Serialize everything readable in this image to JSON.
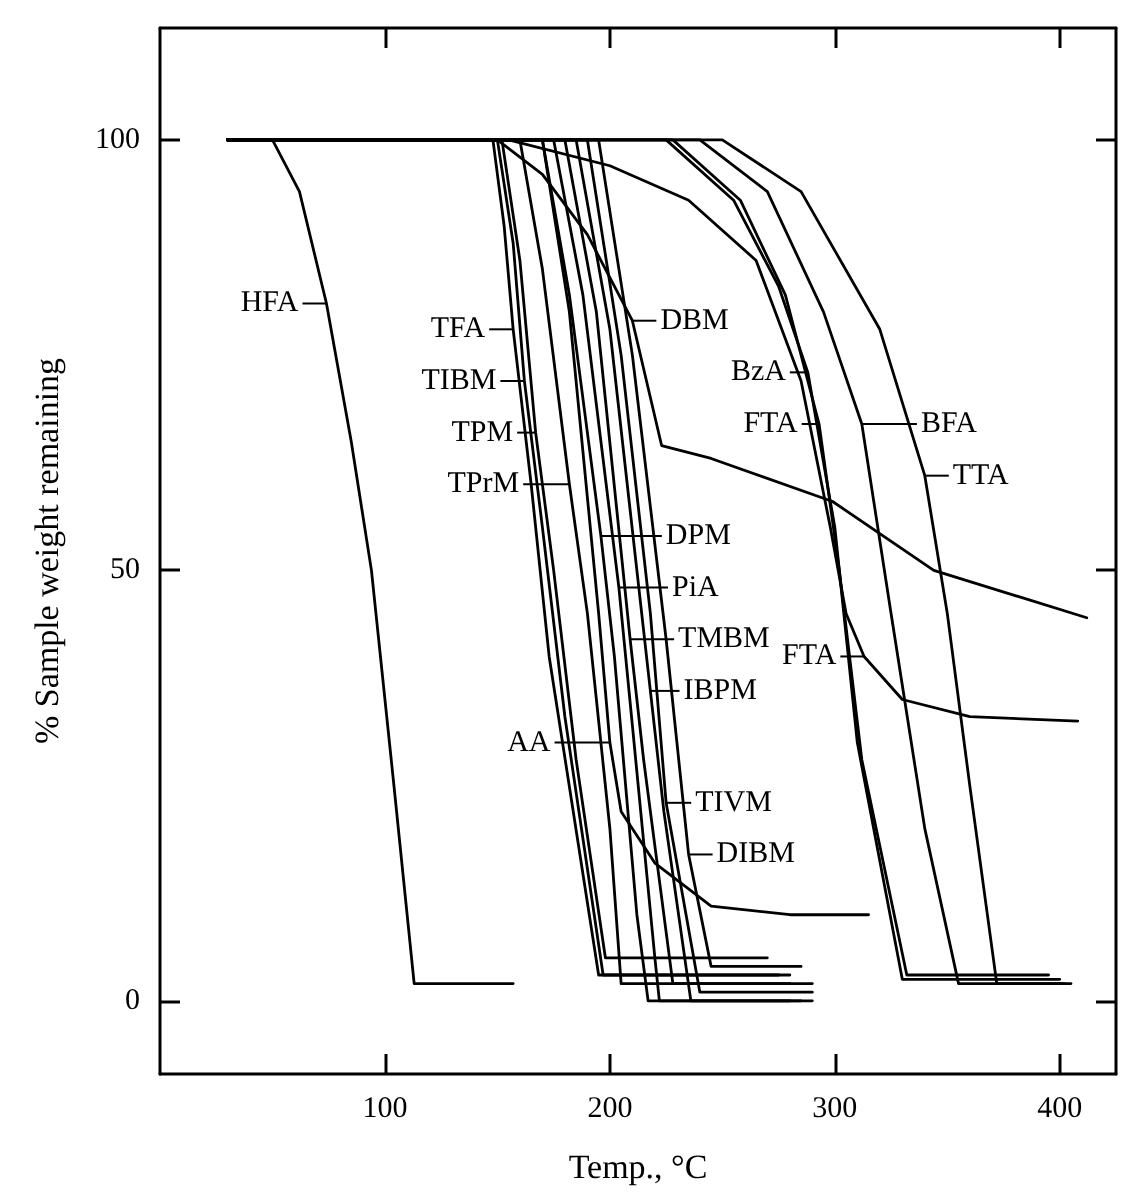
{
  "chart_data": {
    "type": "line",
    "xlabel": "Temp., °C",
    "ylabel": "% Sample weight remaining",
    "xlim": [
      0,
      425
    ],
    "xticks": [
      100,
      200,
      300,
      400
    ],
    "ylim": [
      -8.5,
      113
    ],
    "yticks": [
      0,
      50,
      100
    ],
    "grid": false,
    "marker": "none",
    "line_style": "solid",
    "series": [
      {
        "color": "#000000",
        "x": [
          30,
          50,
          62,
          74,
          85,
          94,
          104,
          113,
          157
        ],
        "values": [
          100,
          100,
          94,
          81,
          65,
          50,
          25,
          2,
          2
        ]
      },
      {
        "color": "#000000",
        "x": [
          30,
          148,
          153,
          157,
          165,
          173,
          195,
          280
        ],
        "values": [
          100,
          100,
          90,
          78,
          60,
          40,
          3,
          3
        ]
      },
      {
        "color": "#000000",
        "x": [
          30,
          150,
          157,
          162,
          170,
          180,
          197,
          275
        ],
        "values": [
          100,
          100,
          88,
          72,
          55,
          33,
          3,
          3
        ]
      },
      {
        "color": "#000000",
        "x": [
          30,
          152,
          160,
          167,
          175,
          185,
          198,
          270
        ],
        "values": [
          100,
          100,
          86,
          66,
          50,
          28,
          5,
          5
        ]
      },
      {
        "color": "#000000",
        "x": [
          30,
          160,
          170,
          182,
          190,
          200,
          205,
          280
        ],
        "values": [
          100,
          100,
          85,
          60,
          45,
          20,
          2,
          2
        ]
      },
      {
        "color": "#000000",
        "x": [
          30,
          170,
          182,
          196,
          202,
          212,
          217,
          280
        ],
        "values": [
          100,
          100,
          82,
          54,
          40,
          10,
          0,
          0
        ]
      },
      {
        "color": "#000000",
        "x": [
          30,
          175,
          188,
          204,
          210,
          220,
          222,
          285
        ],
        "values": [
          100,
          100,
          82,
          48,
          32,
          5,
          0,
          0
        ]
      },
      {
        "color": "#000000",
        "x": [
          30,
          180,
          194,
          209,
          215,
          228,
          290
        ],
        "values": [
          100,
          100,
          80,
          42,
          28,
          2,
          2
        ]
      },
      {
        "color": "#000000",
        "x": [
          30,
          185,
          200,
          218,
          224,
          236,
          290
        ],
        "values": [
          100,
          100,
          78,
          36,
          22,
          0,
          0
        ]
      },
      {
        "color": "#000000",
        "x": [
          30,
          170,
          182,
          195,
          200,
          205,
          220,
          245,
          280,
          315
        ],
        "values": [
          100,
          100,
          80,
          45,
          30,
          22,
          16,
          11,
          10,
          10
        ]
      },
      {
        "color": "#000000",
        "x": [
          30,
          190,
          205,
          218,
          225,
          240,
          290
        ],
        "values": [
          100,
          100,
          75,
          45,
          23,
          1,
          1
        ]
      },
      {
        "color": "#000000",
        "x": [
          30,
          195,
          210,
          225,
          235,
          245,
          285
        ],
        "values": [
          100,
          100,
          75,
          42,
          17,
          4,
          4
        ]
      },
      {
        "color": "#000000",
        "x": [
          30,
          150,
          170,
          190,
          210,
          223,
          245,
          299,
          344,
          412
        ],
        "values": [
          100,
          100,
          96,
          89,
          79,
          64.5,
          63,
          58,
          50,
          44.5
        ]
      },
      {
        "color": "#000000",
        "x": [
          30,
          225,
          255,
          275,
          288,
          300,
          310,
          330,
          400
        ],
        "values": [
          100,
          100,
          93,
          83,
          73,
          55,
          30,
          2.5,
          2.5
        ]
      },
      {
        "color": "#000000",
        "x": [
          30,
          228,
          258,
          278,
          293,
          302,
          312,
          332,
          395
        ],
        "values": [
          100,
          100,
          93,
          82,
          67,
          50,
          28,
          3,
          3
        ]
      },
      {
        "color": "#000000",
        "x": [
          30,
          155,
          200,
          235,
          265,
          285,
          298,
          305,
          313,
          330,
          360,
          408
        ],
        "values": [
          100,
          100,
          97,
          93,
          86,
          72,
          55,
          45,
          40,
          35,
          33,
          32.5
        ]
      },
      {
        "color": "#000000",
        "x": [
          30,
          240,
          270,
          295,
          312,
          325,
          340,
          355,
          402
        ],
        "values": [
          100,
          100,
          94,
          80,
          67,
          45,
          20,
          2,
          2
        ]
      },
      {
        "color": "#000000",
        "x": [
          30,
          250,
          285,
          320,
          340,
          350,
          360,
          372,
          405
        ],
        "values": [
          100,
          100,
          94,
          78,
          61,
          45,
          25,
          2,
          2
        ]
      }
    ],
    "annotations": [
      {
        "text": "HFA",
        "x": 74,
        "y": 81
      },
      {
        "text": "TFA",
        "x": 157,
        "y": 78
      },
      {
        "text": "TIBM",
        "x": 162,
        "y": 72
      },
      {
        "text": "TPM",
        "x": 167,
        "y": 66
      },
      {
        "text": "TPrM",
        "x": 182,
        "y": 60
      },
      {
        "text": "DPM",
        "x": 196,
        "y": 54
      },
      {
        "text": "PiA",
        "x": 204,
        "y": 48
      },
      {
        "text": "TMBM",
        "x": 209,
        "y": 42
      },
      {
        "text": "IBPM",
        "x": 218,
        "y": 36
      },
      {
        "text": "AA",
        "x": 200,
        "y": 30
      },
      {
        "text": "TIVM",
        "x": 225,
        "y": 23
      },
      {
        "text": "DIBM",
        "x": 235,
        "y": 17
      },
      {
        "text": "DBM",
        "x": 210,
        "y": 79
      },
      {
        "text": "BzA",
        "x": 288,
        "y": 73
      },
      {
        "text": "FTA",
        "x": 293,
        "y": 67
      },
      {
        "text": "BFA",
        "x": 312,
        "y": 67
      },
      {
        "text": "TTA",
        "x": 340,
        "y": 61
      },
      {
        "text": "FTA",
        "x": 313,
        "y": 40
      }
    ]
  }
}
